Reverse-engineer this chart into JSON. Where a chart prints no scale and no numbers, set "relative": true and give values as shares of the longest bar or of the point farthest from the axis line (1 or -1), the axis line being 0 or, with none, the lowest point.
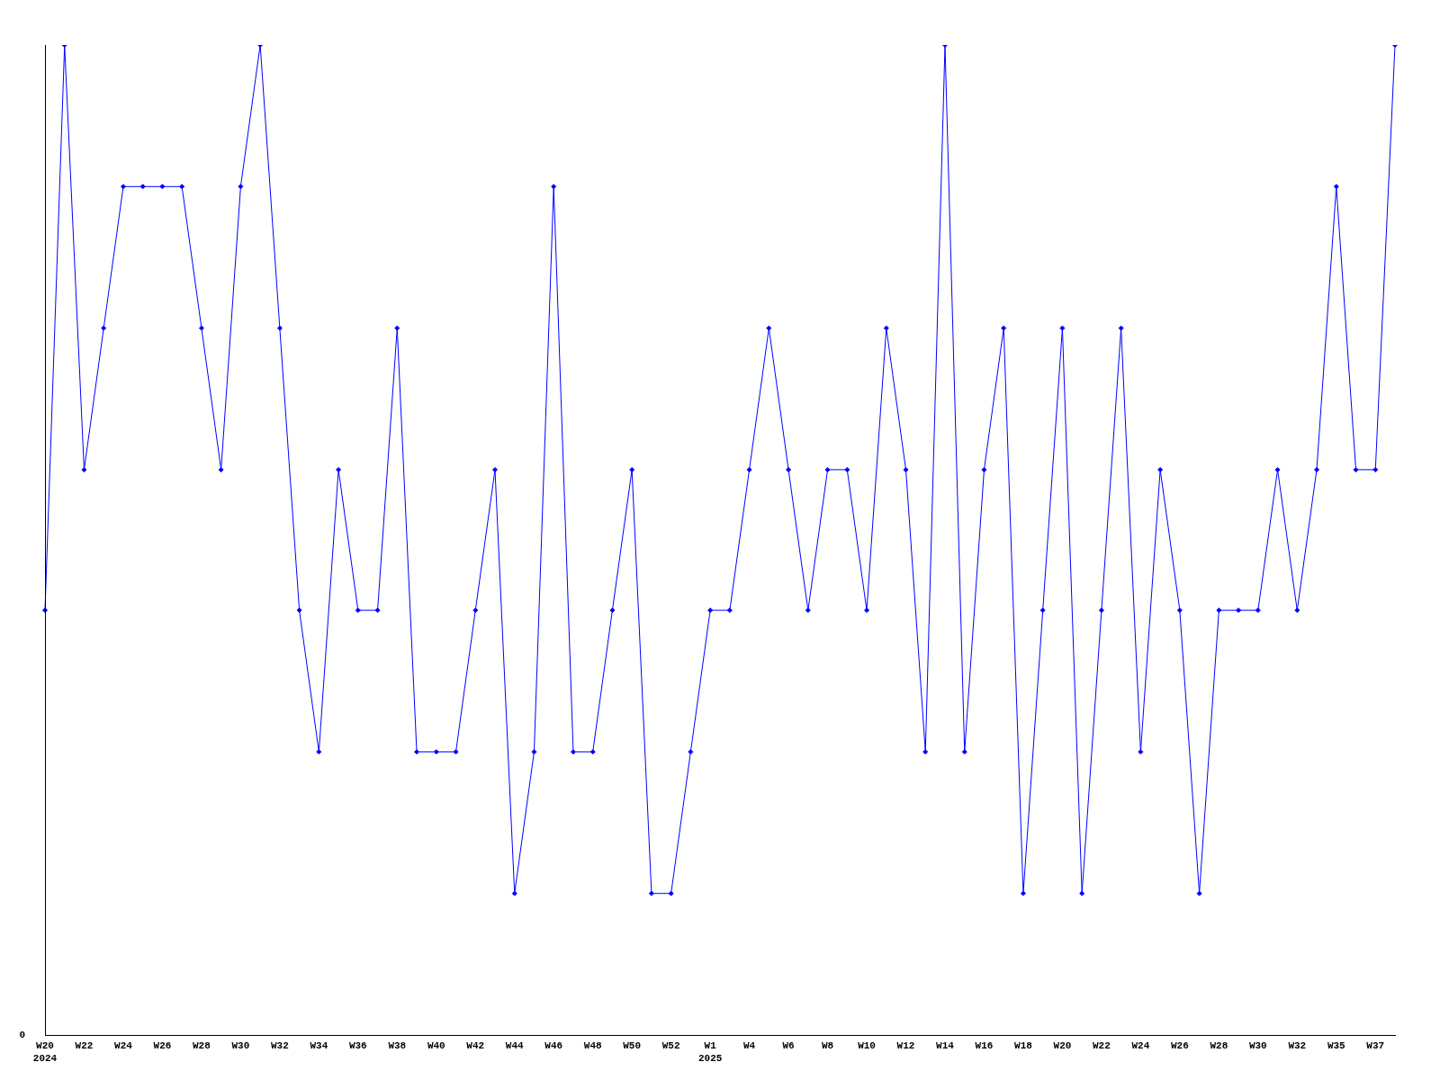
{
  "chart_data": {
    "type": "line",
    "relative": true,
    "color": "#0000ff",
    "marker": "diamond",
    "grid": false,
    "legend": false,
    "categories": [
      "W20\n2024",
      null,
      "W22",
      null,
      "W24",
      null,
      "W26",
      null,
      "W28",
      null,
      "W30",
      null,
      "W32",
      null,
      "W34",
      null,
      "W36",
      null,
      "W38",
      null,
      "W40",
      null,
      "W42",
      null,
      "W44",
      null,
      "W46",
      null,
      "W48",
      null,
      "W50",
      null,
      "W52",
      null,
      "W1\n2025",
      null,
      "W4",
      null,
      "W6",
      null,
      "W8",
      null,
      "W10",
      null,
      "W12",
      null,
      "W14",
      null,
      "W16",
      null,
      "W18",
      null,
      "W20",
      null,
      "W22",
      null,
      "W24",
      null,
      "W26",
      null,
      "W28",
      null,
      "W30",
      null,
      "W32",
      null,
      "W35",
      null,
      "W37",
      null
    ],
    "values": [
      0.429,
      1,
      0.571,
      0.714,
      0.857,
      0.857,
      0.857,
      0.857,
      0.714,
      0.571,
      0.857,
      1,
      0.714,
      0.429,
      0.286,
      0.571,
      0.429,
      0.429,
      0.714,
      0.286,
      0.286,
      0.286,
      0.429,
      0.571,
      0.143,
      0.286,
      0.857,
      0.286,
      0.286,
      0.429,
      0.571,
      0.143,
      0.143,
      0.286,
      0.429,
      0.429,
      0.571,
      0.714,
      0.571,
      0.429,
      0.571,
      0.571,
      0.429,
      0.714,
      0.571,
      0.286,
      1,
      0.286,
      0.571,
      0.714,
      0.143,
      0.429,
      0.714,
      0.143,
      0.429,
      0.714,
      0.286,
      0.571,
      0.429,
      0.143,
      0.429,
      0.429,
      0.429,
      0.571,
      0.429,
      0.571,
      0.857,
      0.571,
      0.571,
      1
    ],
    "annotations": [
      "0"
    ]
  }
}
